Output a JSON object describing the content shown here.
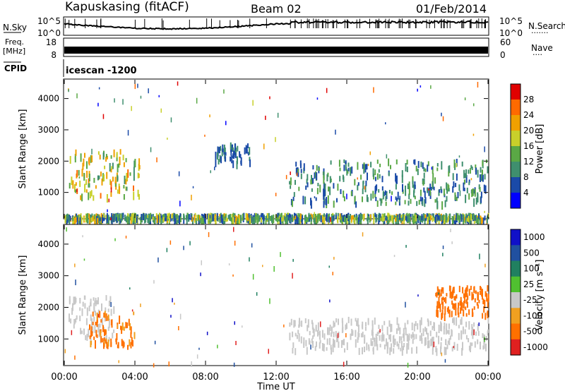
{
  "header": {
    "station": "Kapuskasing (fitACF)",
    "beam": "Beam 02",
    "date": "01/Feb/2014"
  },
  "panels": {
    "nsky": {
      "label": "N.Sky",
      "tick_top": "10^5",
      "tick_bottom": "10^0",
      "right_label": "N.Search",
      "right_dots": "·······"
    },
    "freq": {
      "label_1": "Freq.",
      "label_2": "[MHz]",
      "tick_top": "18",
      "tick_bottom": "8",
      "right_top": "60",
      "right_bottom": "0",
      "right_label": "Nave",
      "right_dots": "····"
    },
    "cpid": {
      "label": "CPID",
      "value": "icescan -1200"
    }
  },
  "colors": {
    "power_scale": [
      "#0000ff",
      "#1a4aa8",
      "#3f8f6e",
      "#5aa845",
      "#c8d02a",
      "#f0a000",
      "#ff6a00",
      "#e00000"
    ],
    "velocity_scale": [
      "#1010c8",
      "#2050a0",
      "#208060",
      "#50c030",
      "#c8c8c8",
      "#f0a020",
      "#ff7000",
      "#e02020"
    ]
  },
  "chart_data": [
    {
      "type": "heatmap",
      "name": "Power",
      "ylabel": "Slant Range [km]",
      "ylim": [
        180,
        4600
      ],
      "yticks": [
        "1000",
        "2000",
        "3000",
        "4000"
      ],
      "xlim": [
        "00:00",
        "24:00"
      ],
      "colorbar": {
        "label": "Power [dB]",
        "ticks": [
          "4",
          "8",
          "12",
          "16",
          "20",
          "24",
          "28"
        ],
        "range": [
          0,
          30
        ]
      },
      "echo_regions": [
        {
          "t": [
            0.2,
            4.3
          ],
          "range_km": [
            900,
            2400
          ],
          "power_db": [
            10,
            24
          ]
        },
        {
          "t": [
            12.7,
            24.0
          ],
          "range_km": [
            700,
            2100
          ],
          "power_db": [
            4,
            14
          ]
        },
        {
          "t": [
            8.5,
            10.5
          ],
          "range_km": [
            2000,
            2600
          ],
          "power_db": [
            4,
            10
          ]
        },
        {
          "t": [
            0.0,
            24.0
          ],
          "range_km": [
            180,
            350
          ],
          "power_db": [
            4,
            20
          ]
        }
      ]
    },
    {
      "type": "heatmap",
      "name": "Velocity",
      "ylabel": "Slant Range [km]",
      "ylim": [
        180,
        4600
      ],
      "yticks": [
        "1000",
        "2000",
        "3000",
        "4000"
      ],
      "xlim": [
        "00:00",
        "24:00"
      ],
      "xticks": [
        "00:00",
        "04:00",
        "08:00",
        "12:00",
        "16:00",
        "20:00",
        "00:00"
      ],
      "xlabel": "Time UT",
      "colorbar": {
        "label": "Velocity [m s⁻¹]",
        "ticks": [
          "1000",
          "500",
          "100",
          "25",
          "-25",
          "-100",
          "-500",
          "-1000"
        ]
      },
      "echo_regions": [
        {
          "t": [
            0.2,
            2.8
          ],
          "range_km": [
            1000,
            2400
          ],
          "velocity_ms": [
            -25,
            25
          ]
        },
        {
          "t": [
            1.4,
            4.0
          ],
          "range_km": [
            800,
            1900
          ],
          "velocity_ms": [
            -200,
            -80
          ]
        },
        {
          "t": [
            12.7,
            24.0
          ],
          "range_km": [
            700,
            1700
          ],
          "velocity_ms": [
            -25,
            25
          ]
        },
        {
          "t": [
            21.0,
            24.0
          ],
          "range_km": [
            1800,
            2700
          ],
          "velocity_ms": [
            -400,
            -100
          ]
        }
      ]
    }
  ]
}
